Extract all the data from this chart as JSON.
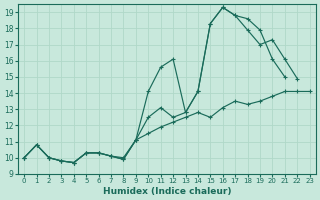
{
  "xlabel": "Humidex (Indice chaleur)",
  "xlim": [
    -0.5,
    23.5
  ],
  "ylim": [
    9,
    19.5
  ],
  "xticks": [
    0,
    1,
    2,
    3,
    4,
    5,
    6,
    7,
    8,
    9,
    10,
    11,
    12,
    13,
    14,
    15,
    16,
    17,
    18,
    19,
    20,
    21,
    22,
    23
  ],
  "yticks": [
    9,
    10,
    11,
    12,
    13,
    14,
    15,
    16,
    17,
    18,
    19
  ],
  "bg_color": "#c8e8dc",
  "grid_color": "#b0d8c8",
  "line_color": "#1a6b5a",
  "lines": [
    {
      "x": [
        0,
        1,
        2,
        3,
        4,
        5,
        6,
        7,
        8,
        9,
        10,
        11,
        12,
        13,
        14,
        15,
        16,
        17,
        18,
        19,
        20,
        21,
        22,
        23
      ],
      "y": [
        10.0,
        10.8,
        10.0,
        9.8,
        9.7,
        10.3,
        10.3,
        10.1,
        9.9,
        11.1,
        11.5,
        11.9,
        12.2,
        12.5,
        12.8,
        12.5,
        13.1,
        13.5,
        13.3,
        13.5,
        13.8,
        14.1,
        14.1,
        14.1
      ]
    },
    {
      "x": [
        0,
        1,
        2,
        3,
        4,
        5,
        6,
        7,
        8,
        9,
        10,
        11,
        12,
        13,
        14,
        15,
        16,
        17,
        18,
        19,
        20,
        21
      ],
      "y": [
        10.0,
        10.8,
        10.0,
        9.8,
        9.7,
        10.3,
        10.3,
        10.1,
        10.0,
        11.1,
        14.1,
        15.6,
        16.1,
        12.8,
        14.1,
        18.3,
        19.3,
        18.8,
        18.6,
        17.9,
        16.1,
        15.0
      ]
    },
    {
      "x": [
        0,
        1,
        2,
        3,
        4,
        5,
        6,
        7,
        8,
        9,
        10,
        11,
        12,
        13,
        14,
        15,
        16,
        17,
        18,
        19,
        20,
        21,
        22
      ],
      "y": [
        10.0,
        10.8,
        10.0,
        9.8,
        9.7,
        10.3,
        10.3,
        10.1,
        9.9,
        11.1,
        12.5,
        13.1,
        12.5,
        12.8,
        14.1,
        18.3,
        19.3,
        18.8,
        17.9,
        17.0,
        17.3,
        16.1,
        14.9
      ]
    }
  ]
}
